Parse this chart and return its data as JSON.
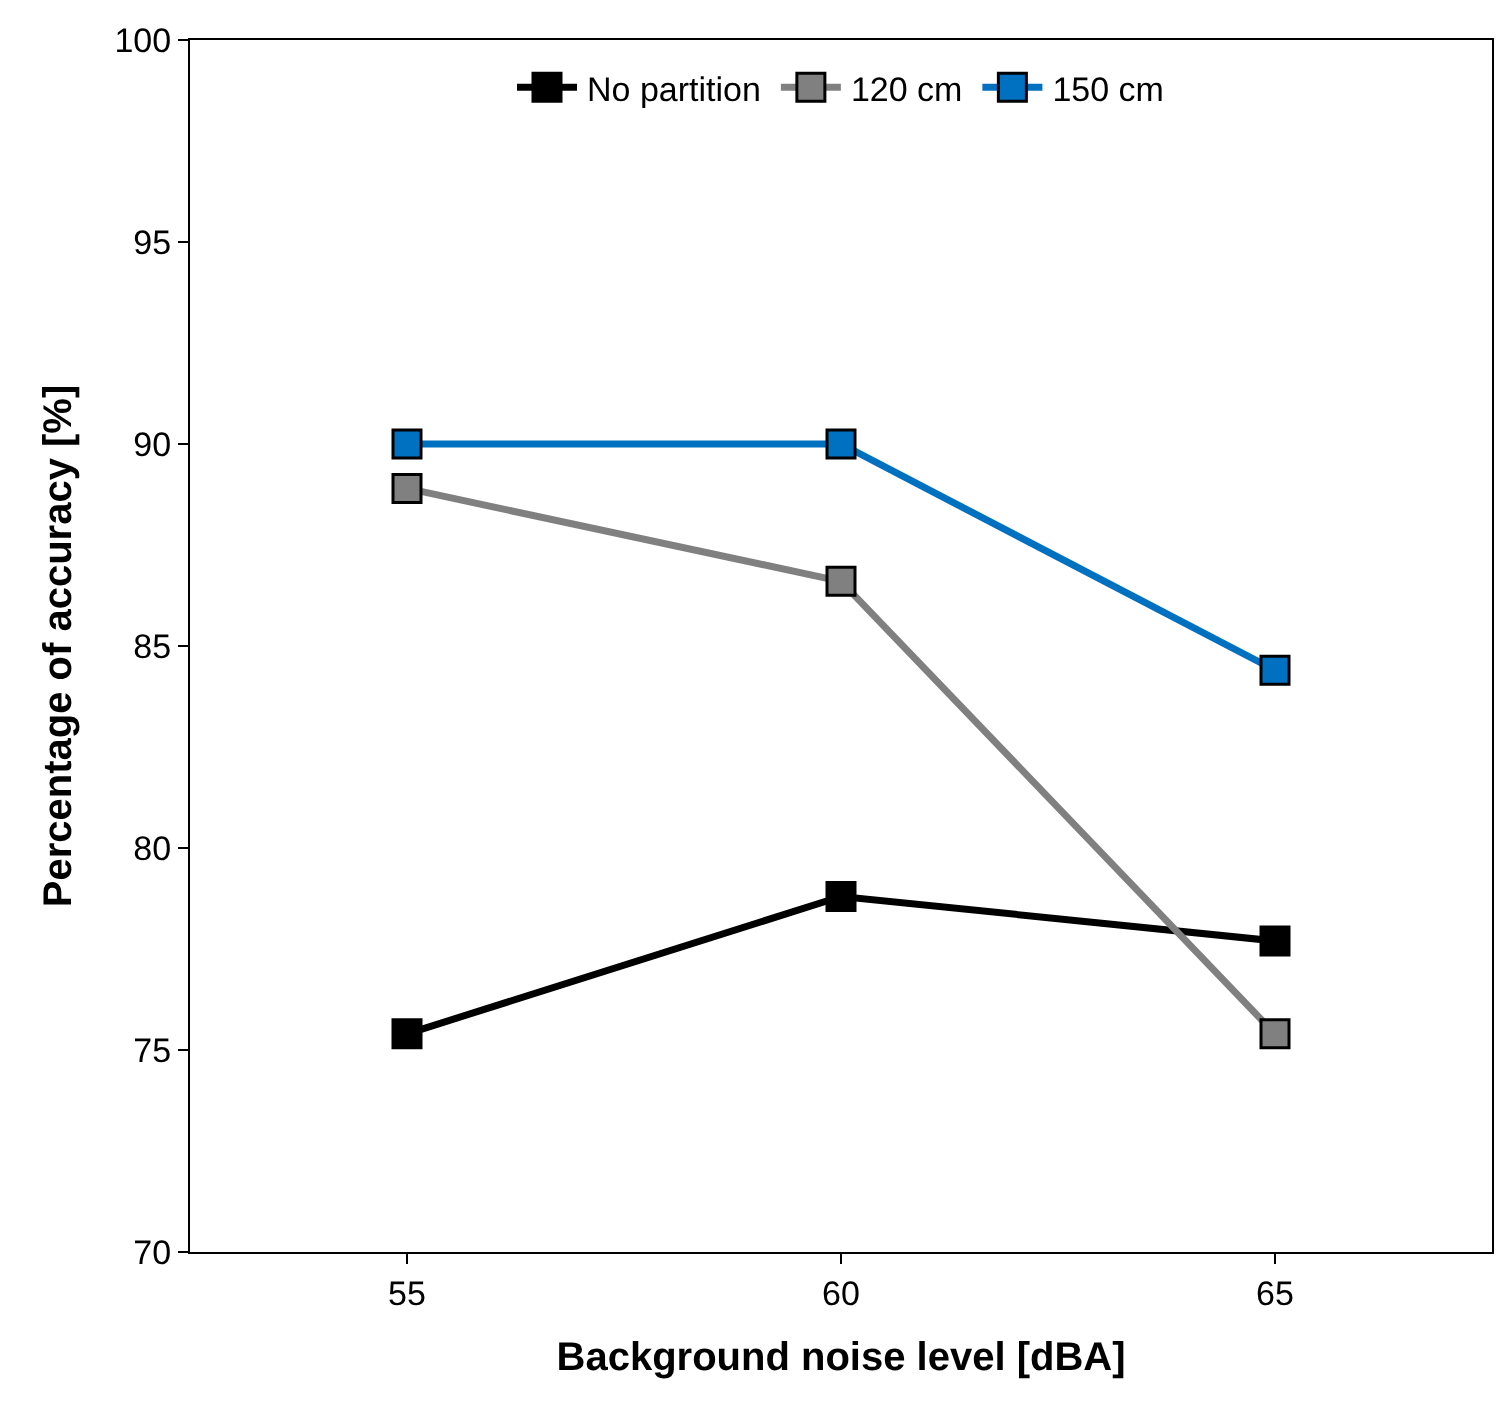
{
  "chart_data": {
    "type": "line",
    "xlabel": "Background noise level [dBA]",
    "ylabel": "Percentage of accuracy [%]",
    "categories": [
      "55",
      "60",
      "65"
    ],
    "series": [
      {
        "name": "No partition",
        "color": "#000000",
        "values": [
          75.4,
          78.8,
          77.7
        ]
      },
      {
        "name": "120 cm",
        "color": "#808080",
        "values": [
          88.9,
          86.6,
          75.4
        ]
      },
      {
        "name": "150 cm",
        "color": "#0070c0",
        "values": [
          90.0,
          90.0,
          84.4
        ]
      }
    ],
    "ylim": [
      70,
      100
    ],
    "yticks": [
      70,
      75,
      80,
      85,
      90,
      95,
      100
    ],
    "legend": "top",
    "marker": "square",
    "line_style": "solid"
  }
}
